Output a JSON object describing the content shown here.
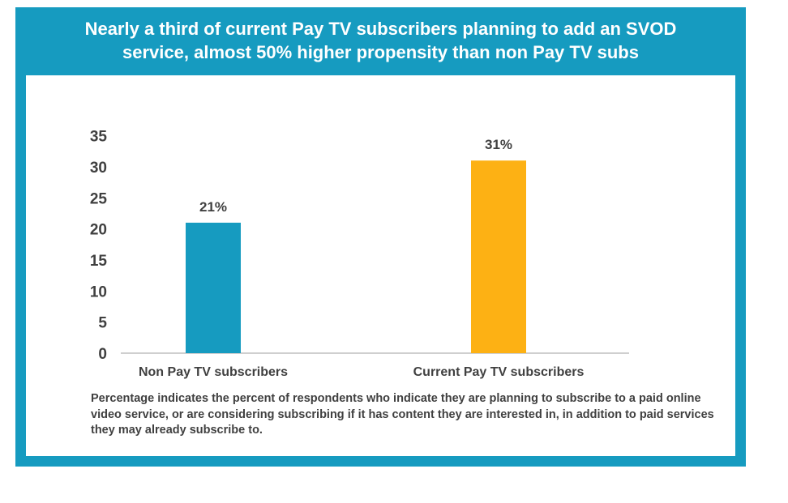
{
  "title_line1": "Nearly a third of current Pay TV subscribers planning to add an SVOD",
  "title_line2": "service, almost 50% higher propensity than non Pay TV subs",
  "note": "Percentage indicates the percent of respondents who indicate they are planning to subscribe to a paid online video service, or are considering subscribing if it has content they are interested in, in addition to paid services they may already subscribe to.",
  "colors": {
    "frame": "#169bc0",
    "bar_non_pay": "#169bc0",
    "bar_pay": "#fdb114",
    "text": "#404040"
  },
  "chart_data": {
    "type": "bar",
    "categories": [
      "Non Pay TV subscribers",
      "Current Pay TV subscribers"
    ],
    "values": [
      21,
      31
    ],
    "data_labels": [
      "21%",
      "31%"
    ],
    "bar_colors": [
      "#169bc0",
      "#fdb114"
    ],
    "yticks": [
      "0",
      "5",
      "10",
      "15",
      "20",
      "25",
      "30",
      "35"
    ],
    "ylim": [
      0,
      35
    ],
    "grid": false,
    "legend": "none"
  }
}
